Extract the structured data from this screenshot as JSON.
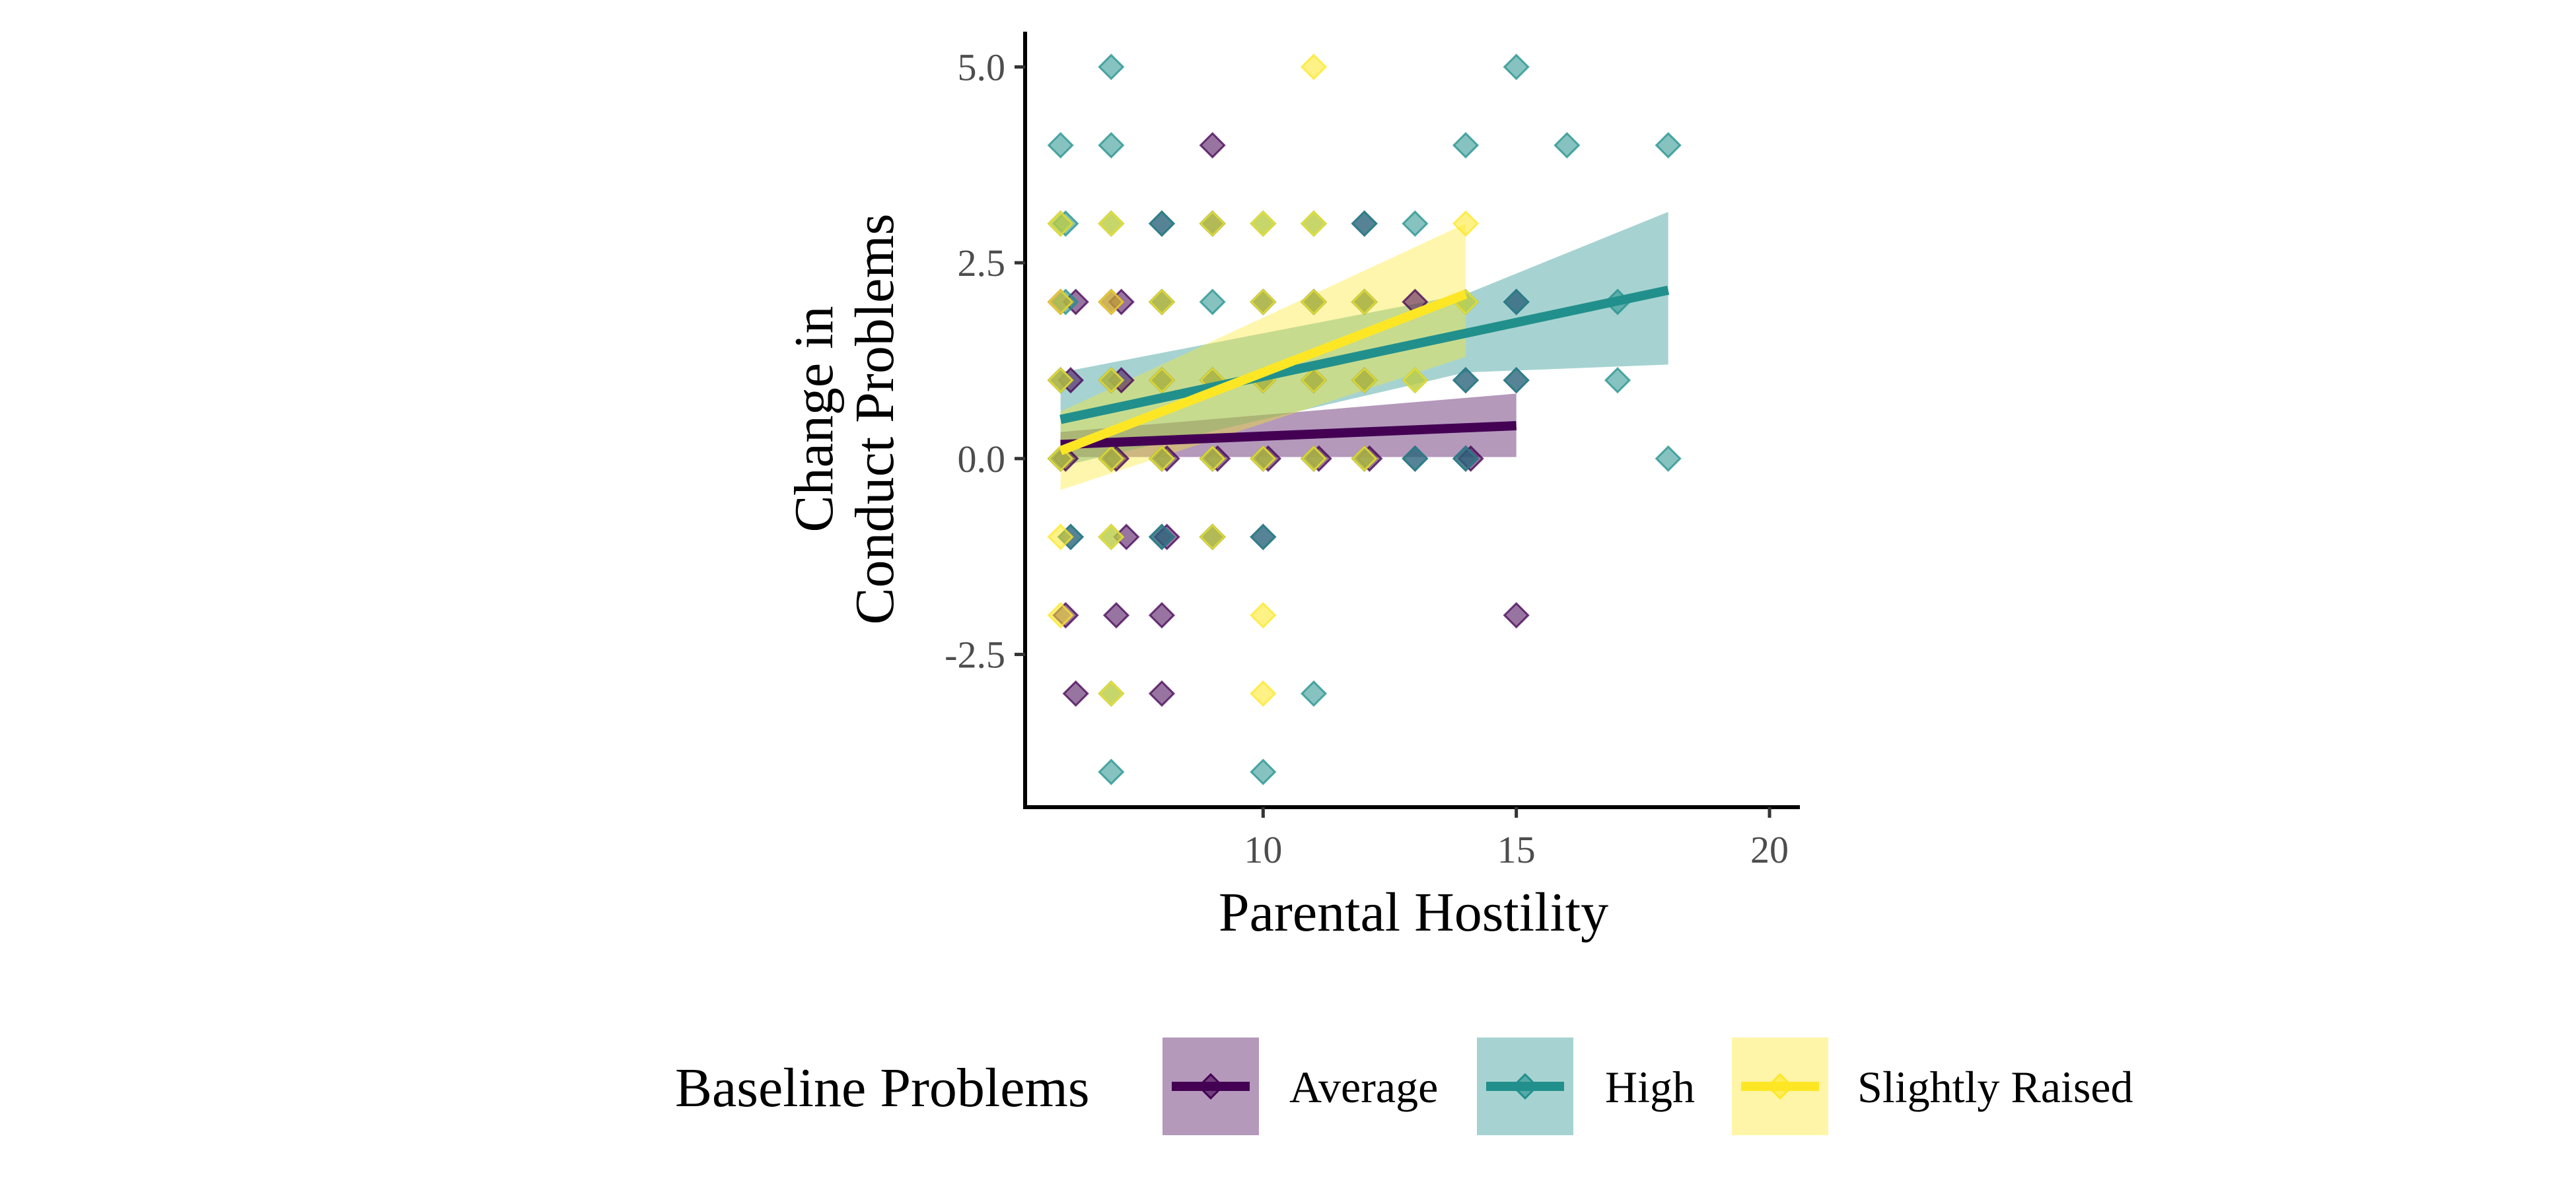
{
  "chart_data": {
    "type": "scatter",
    "title": "",
    "xlabel": "Parental Hostility",
    "ylabel_lines": [
      "Change in",
      "Conduct Problems"
    ],
    "xlim": [
      5.3,
      20.6
    ],
    "ylim": [
      -4.45,
      5.45
    ],
    "x_ticks": [
      10,
      15,
      20
    ],
    "x_tick_labels": [
      "10",
      "15",
      "20"
    ],
    "y_ticks": [
      -2.5,
      0.0,
      2.5,
      5.0
    ],
    "y_tick_labels": [
      "-2.5",
      "0.0",
      "2.5",
      "5.0"
    ],
    "grid": false,
    "legend": {
      "title": "Baseline Problems",
      "placement": "bottom"
    },
    "series": [
      {
        "name": "Average",
        "color": "#440154",
        "fit": {
          "x": [
            6,
            15
          ],
          "y": [
            0.18,
            0.42
          ]
        },
        "band": {
          "x": [
            6,
            15
          ],
          "lower": [
            0.02,
            0.02
          ],
          "upper": [
            0.34,
            0.83
          ]
        },
        "points": [
          [
            6,
            0
          ],
          [
            6.1,
            0
          ],
          [
            6,
            1
          ],
          [
            6.2,
            1
          ],
          [
            6,
            2
          ],
          [
            6.3,
            2
          ],
          [
            6.2,
            -1
          ],
          [
            6.1,
            -2
          ],
          [
            6.3,
            -3
          ],
          [
            7,
            0
          ],
          [
            7.1,
            0
          ],
          [
            7,
            1
          ],
          [
            7.2,
            1
          ],
          [
            7,
            2
          ],
          [
            7.2,
            2
          ],
          [
            7.1,
            -2
          ],
          [
            7.3,
            -1
          ],
          [
            8,
            0
          ],
          [
            8.1,
            0
          ],
          [
            8,
            1
          ],
          [
            8,
            2
          ],
          [
            8,
            3
          ],
          [
            8,
            -1
          ],
          [
            8.1,
            -1
          ],
          [
            8,
            -2
          ],
          [
            8,
            -3
          ],
          [
            9,
            0
          ],
          [
            9.1,
            0
          ],
          [
            9,
            1
          ],
          [
            9,
            3
          ],
          [
            9,
            4
          ],
          [
            9,
            -1
          ],
          [
            10,
            0
          ],
          [
            10.1,
            0
          ],
          [
            10,
            1
          ],
          [
            10,
            -1
          ],
          [
            10,
            2
          ],
          [
            11,
            0
          ],
          [
            11.1,
            0
          ],
          [
            11,
            1
          ],
          [
            11,
            2
          ],
          [
            12,
            0
          ],
          [
            12.1,
            0
          ],
          [
            12,
            1
          ],
          [
            12,
            2
          ],
          [
            12,
            3
          ],
          [
            13,
            0
          ],
          [
            13,
            2
          ],
          [
            14,
            0
          ],
          [
            14.1,
            0
          ],
          [
            14,
            1
          ],
          [
            15,
            1
          ],
          [
            15,
            2
          ],
          [
            15,
            -2
          ]
        ]
      },
      {
        "name": "High",
        "color": "#21908C",
        "fit": {
          "x": [
            6,
            18
          ],
          "y": [
            0.5,
            2.15
          ]
        },
        "band": {
          "x": [
            6,
            14,
            18
          ],
          "lower": [
            -0.1,
            1.1,
            1.2
          ],
          "upper": [
            1.1,
            2.1,
            3.15
          ]
        },
        "points": [
          [
            6,
            0
          ],
          [
            6,
            1
          ],
          [
            6,
            3
          ],
          [
            6.1,
            3
          ],
          [
            6,
            4
          ],
          [
            6.2,
            -1
          ],
          [
            6.1,
            2
          ],
          [
            7,
            5
          ],
          [
            7,
            4
          ],
          [
            7,
            3
          ],
          [
            7,
            1
          ],
          [
            7,
            0
          ],
          [
            7,
            -1
          ],
          [
            7,
            -3
          ],
          [
            7,
            -4
          ],
          [
            8,
            2
          ],
          [
            8,
            0
          ],
          [
            8,
            1
          ],
          [
            8,
            3
          ],
          [
            8,
            -1
          ],
          [
            9,
            3
          ],
          [
            9,
            2
          ],
          [
            9,
            0
          ],
          [
            9,
            1
          ],
          [
            9,
            -1
          ],
          [
            10,
            3
          ],
          [
            10,
            2
          ],
          [
            10,
            0
          ],
          [
            10,
            -1
          ],
          [
            10,
            -4
          ],
          [
            10,
            1
          ],
          [
            11,
            3
          ],
          [
            11,
            2
          ],
          [
            11,
            1
          ],
          [
            11,
            -3
          ],
          [
            11,
            0
          ],
          [
            12,
            3
          ],
          [
            12,
            1
          ],
          [
            12,
            2
          ],
          [
            12,
            0
          ],
          [
            13,
            3
          ],
          [
            13,
            0
          ],
          [
            13,
            1
          ],
          [
            14,
            4
          ],
          [
            14,
            2
          ],
          [
            14,
            1
          ],
          [
            14,
            0
          ],
          [
            15,
            5
          ],
          [
            15,
            2
          ],
          [
            15,
            1
          ],
          [
            16,
            4
          ],
          [
            17,
            2
          ],
          [
            17,
            1
          ],
          [
            18,
            4
          ],
          [
            18,
            0
          ]
        ]
      },
      {
        "name": "Slightly Raised",
        "color": "#FDE725",
        "fit": {
          "x": [
            6,
            14
          ],
          "y": [
            0.1,
            2.1
          ]
        },
        "band": {
          "x": [
            6,
            14
          ],
          "lower": [
            -0.4,
            1.3
          ],
          "upper": [
            0.6,
            3.0
          ]
        },
        "points": [
          [
            6,
            -1
          ],
          [
            6,
            -2
          ],
          [
            6,
            0
          ],
          [
            6,
            1
          ],
          [
            6,
            2
          ],
          [
            6,
            3
          ],
          [
            7,
            3
          ],
          [
            7,
            0
          ],
          [
            7,
            1
          ],
          [
            7,
            2
          ],
          [
            7,
            -1
          ],
          [
            7,
            -3
          ],
          [
            8,
            1
          ],
          [
            8,
            0
          ],
          [
            8,
            2
          ],
          [
            9,
            0
          ],
          [
            9,
            1
          ],
          [
            9,
            -1
          ],
          [
            9,
            3
          ],
          [
            10,
            0
          ],
          [
            10,
            1
          ],
          [
            10,
            2
          ],
          [
            10,
            3
          ],
          [
            10,
            -2
          ],
          [
            10,
            -3
          ],
          [
            11,
            5
          ],
          [
            11,
            3
          ],
          [
            11,
            2
          ],
          [
            11,
            1
          ],
          [
            11,
            0
          ],
          [
            12,
            2
          ],
          [
            12,
            1
          ],
          [
            12,
            0
          ],
          [
            13,
            1
          ],
          [
            14,
            3
          ],
          [
            14,
            2
          ]
        ]
      }
    ]
  }
}
